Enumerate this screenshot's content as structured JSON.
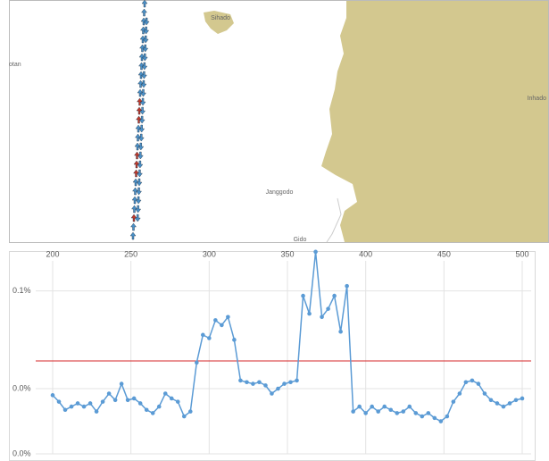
{
  "map": {
    "labels": [
      "otan",
      "Sihado",
      "Inhado",
      "Janggodo",
      "Gido"
    ]
  },
  "chart_data": {
    "type": "line",
    "x": [
      200,
      204,
      208,
      212,
      216,
      220,
      224,
      228,
      232,
      236,
      240,
      244,
      248,
      252,
      256,
      260,
      264,
      268,
      272,
      276,
      280,
      284,
      288,
      292,
      296,
      300,
      304,
      308,
      312,
      316,
      320,
      324,
      328,
      332,
      336,
      340,
      344,
      348,
      352,
      356,
      360,
      364,
      368,
      372,
      376,
      380,
      384,
      388,
      392,
      396,
      400,
      404,
      408,
      412,
      416,
      420,
      424,
      428,
      432,
      436,
      440,
      444,
      448,
      452,
      456,
      460,
      464,
      468,
      472,
      476,
      480,
      484,
      488,
      492,
      496,
      500
    ],
    "series": [
      {
        "color": "#5b9bd5",
        "values": [
          0.036,
          0.032,
          0.027,
          0.029,
          0.031,
          0.029,
          0.031,
          0.026,
          0.032,
          0.037,
          0.033,
          0.043,
          0.033,
          0.034,
          0.031,
          0.027,
          0.025,
          0.029,
          0.037,
          0.034,
          0.032,
          0.023,
          0.026,
          0.056,
          0.073,
          0.071,
          0.082,
          0.079,
          0.084,
          0.07,
          0.045,
          0.044,
          0.043,
          0.044,
          0.042,
          0.037,
          0.04,
          0.043,
          0.044,
          0.045,
          0.097,
          0.086,
          0.124,
          0.084,
          0.089,
          0.097,
          0.075,
          0.103,
          0.026,
          0.029,
          0.025,
          0.029,
          0.026,
          0.029,
          0.027,
          0.025,
          0.026,
          0.029,
          0.025,
          0.023,
          0.025,
          0.022,
          0.02,
          0.023,
          0.032,
          0.037,
          0.044,
          0.045,
          0.043,
          0.037,
          0.033,
          0.031,
          0.029,
          0.031,
          0.033,
          0.034
        ]
      }
    ],
    "threshold": 0.057,
    "threshold_color": "#d62728",
    "xlim": [
      200,
      500
    ],
    "xticks": [
      200,
      250,
      300,
      350,
      400,
      450,
      500
    ],
    "ylim": [
      0,
      0.125
    ],
    "yticks": [
      {
        "value": 0.1,
        "label": "0.1%"
      },
      {
        "value": 0.04,
        "label": "0.0%"
      },
      {
        "value": 0,
        "label": "0.0%"
      }
    ],
    "grid": true
  }
}
